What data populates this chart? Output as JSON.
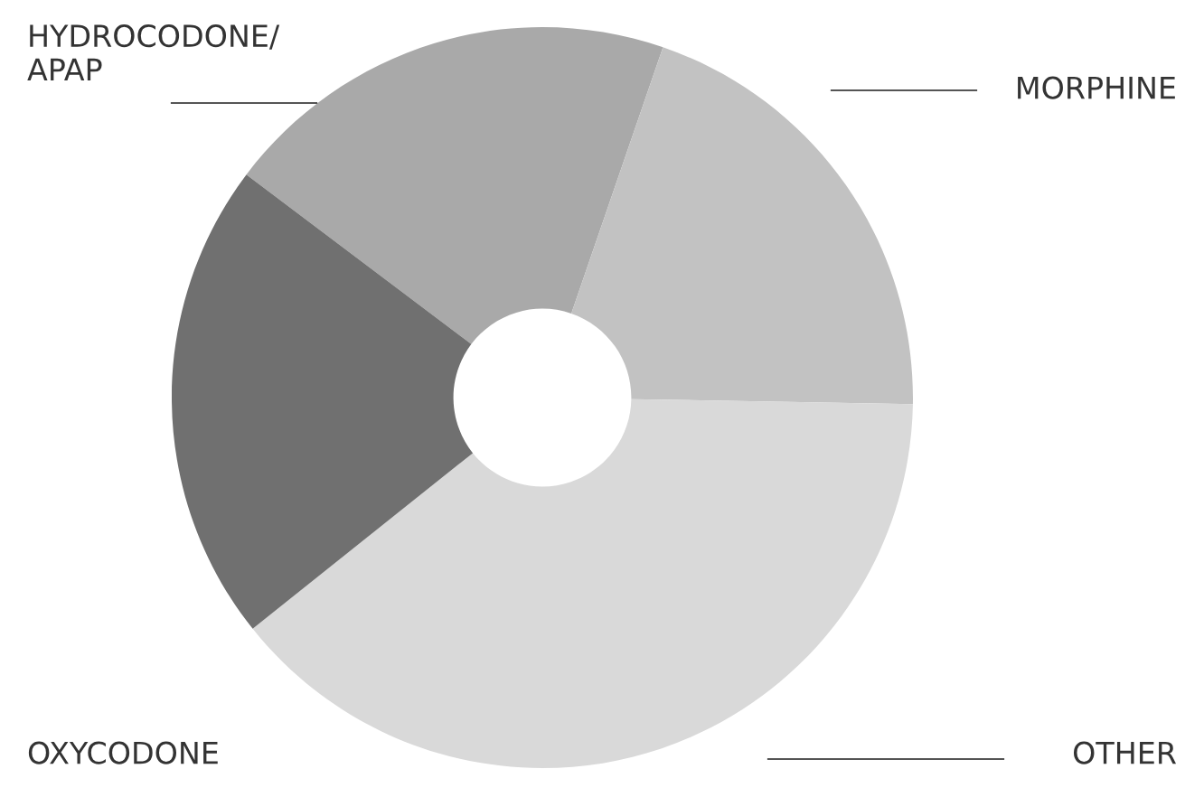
{
  "chart_data": {
    "type": "donut",
    "categories": [
      "HYDROCODONE/\nAPAP",
      "MORPHINE",
      "OTHER",
      "OXYCODONE"
    ],
    "values": [
      20,
      20,
      39,
      21
    ],
    "colors": [
      "#a9a9a9",
      "#c2c2c2",
      "#d9d9d9",
      "#707070"
    ],
    "legend": false
  }
}
